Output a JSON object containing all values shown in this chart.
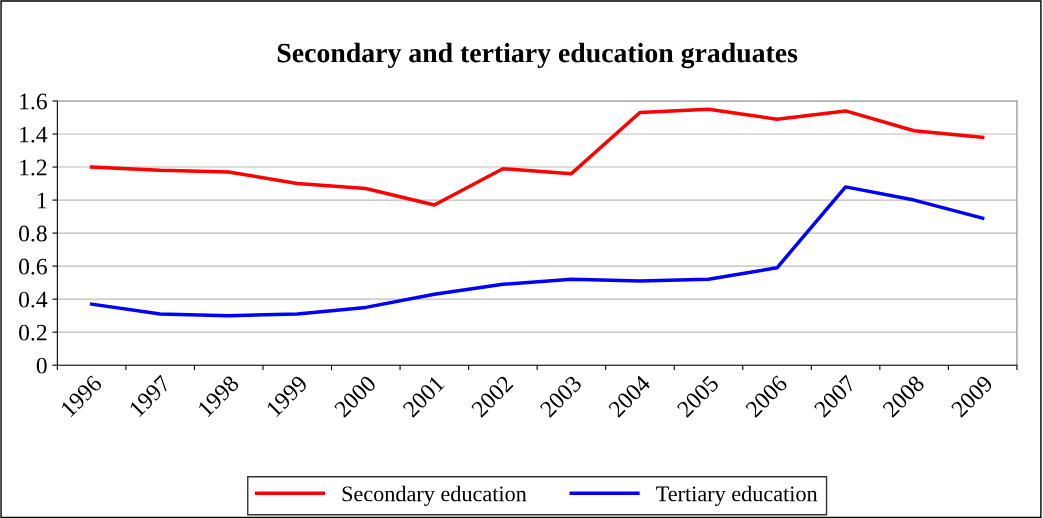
{
  "chart_data": {
    "type": "line",
    "title": "Secondary and tertiary education graduates",
    "categories": [
      "1996",
      "1997",
      "1998",
      "1999",
      "2000",
      "2001",
      "2002",
      "2003",
      "2004",
      "2005",
      "2006",
      "2007",
      "2008",
      "2009"
    ],
    "series": [
      {
        "name": "Secondary education",
        "color": "#ff0000",
        "values": [
          1.2,
          1.18,
          1.17,
          1.1,
          1.07,
          0.97,
          1.19,
          1.16,
          1.53,
          1.55,
          1.49,
          1.54,
          1.42,
          1.38
        ]
      },
      {
        "name": "Tertiary education",
        "color": "#0000ff",
        "values": [
          0.37,
          0.31,
          0.3,
          0.31,
          0.35,
          0.43,
          0.49,
          0.52,
          0.51,
          0.52,
          0.59,
          1.08,
          1.0,
          0.89
        ]
      }
    ],
    "ylim": [
      0,
      1.6
    ],
    "yticks": [
      0,
      {
        "value": 0.2,
        "label": "0.2"
      },
      {
        "value": 0.4,
        "label": "0.4"
      },
      {
        "value": 0.6,
        "label": "0.6"
      },
      {
        "value": 0.8,
        "label": "0.8"
      },
      1,
      {
        "value": 1.2,
        "label": "1.2"
      },
      {
        "value": 1.4,
        "label": "1.4"
      },
      {
        "value": 1.6,
        "label": "1.6"
      }
    ],
    "grid": "y",
    "legend": "bottom",
    "marker": "none",
    "line_style": "solid"
  }
}
